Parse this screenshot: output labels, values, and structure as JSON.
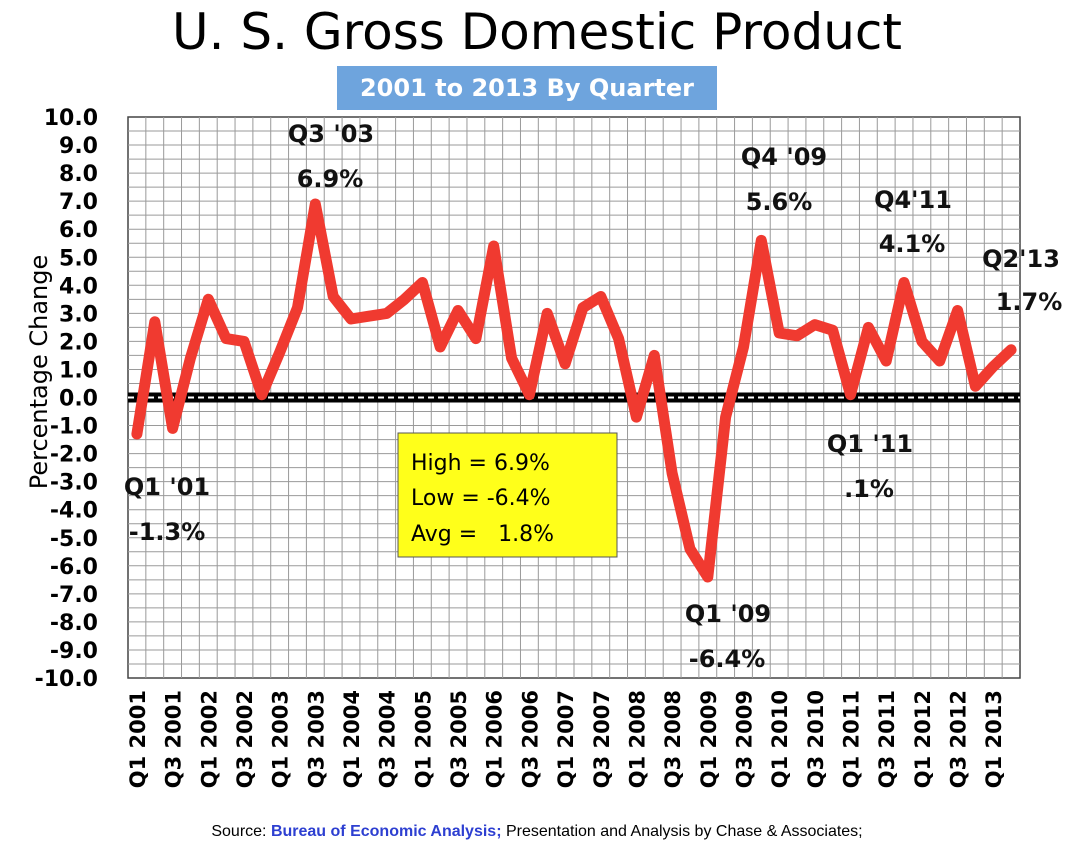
{
  "title": "U. S. Gross Domestic Product",
  "subtitle": "2001 to 2013 By Quarter",
  "source": {
    "prefix": "Source: ",
    "org": "Bureau of Economic Analysis;",
    "suffix": " Presentation and Analysis by Chase & Associates;"
  },
  "stats": {
    "high": "High = 6.9%",
    "low": "Low = -6.4%",
    "avg": "Avg =   1.8%"
  },
  "colors": {
    "line": "#f03a30",
    "stats_box": "#ffff1a",
    "subtitle_box": "#6ea4dd",
    "grid": "#9a9a9a",
    "source_org": "#2d3fd1"
  },
  "chart_data": {
    "type": "line",
    "title": "U. S. Gross Domestic Product",
    "subtitle": "2001 to 2013 By Quarter",
    "xlabel": "",
    "ylabel": "Percentage Change",
    "ylim": [
      -10,
      10
    ],
    "ytick_step": 1,
    "yticks": [
      "10.0",
      "9.0",
      "8.0",
      "7.0",
      "6.0",
      "5.0",
      "4.0",
      "3.0",
      "2.0",
      "1.0",
      "0.0",
      "-1.0",
      "-2.0",
      "-3.0",
      "-4.0",
      "-5.0",
      "-6.0",
      "-7.0",
      "-8.0",
      "-9.0",
      "-10.0"
    ],
    "grid": true,
    "xtick_labels": [
      "Q1 2001",
      "Q3 2001",
      "Q1 2002",
      "Q3 2002",
      "Q1 2003",
      "Q3 2003",
      "Q1 2004",
      "Q3 2004",
      "Q1 2005",
      "Q3 2005",
      "Q1 2006",
      "Q3 2006",
      "Q1 2007",
      "Q3 2007",
      "Q1 2008",
      "Q3 2008",
      "Q1 2009",
      "Q3 2009",
      "Q1 2010",
      "Q3 2010",
      "Q1 2011",
      "Q3 2011",
      "Q1 2012",
      "Q3 2012",
      "Q1 2013"
    ],
    "categories": [
      "Q1 2001",
      "Q2 2001",
      "Q3 2001",
      "Q4 2001",
      "Q1 2002",
      "Q2 2002",
      "Q3 2002",
      "Q4 2002",
      "Q1 2003",
      "Q2 2003",
      "Q3 2003",
      "Q4 2003",
      "Q1 2004",
      "Q2 2004",
      "Q3 2004",
      "Q4 2004",
      "Q1 2005",
      "Q2 2005",
      "Q3 2005",
      "Q4 2005",
      "Q1 2006",
      "Q2 2006",
      "Q3 2006",
      "Q4 2006",
      "Q1 2007",
      "Q2 2007",
      "Q3 2007",
      "Q4 2007",
      "Q1 2008",
      "Q2 2008",
      "Q3 2008",
      "Q4 2008",
      "Q1 2009",
      "Q2 2009",
      "Q3 2009",
      "Q4 2009",
      "Q1 2010",
      "Q2 2010",
      "Q3 2010",
      "Q4 2010",
      "Q1 2011",
      "Q2 2011",
      "Q3 2011",
      "Q4 2011",
      "Q1 2012",
      "Q2 2012",
      "Q3 2012",
      "Q4 2012",
      "Q1 2013",
      "Q2 2013"
    ],
    "series": [
      {
        "name": "GDP % change",
        "values": [
          -1.3,
          2.7,
          -1.1,
          1.4,
          3.5,
          2.1,
          2.0,
          0.1,
          1.6,
          3.2,
          6.9,
          3.6,
          2.8,
          2.9,
          3.0,
          3.5,
          4.1,
          1.8,
          3.1,
          2.1,
          5.4,
          1.4,
          0.1,
          3.0,
          1.2,
          3.2,
          3.6,
          2.1,
          -0.7,
          1.5,
          -2.7,
          -5.4,
          -6.4,
          -0.7,
          1.8,
          5.6,
          2.3,
          2.2,
          2.6,
          2.4,
          0.1,
          2.5,
          1.3,
          4.1,
          2.0,
          1.3,
          3.1,
          0.4,
          1.1,
          1.7
        ]
      }
    ],
    "annotations": [
      {
        "line1": "Q1 '01",
        "line2": "-1.3%"
      },
      {
        "line1": "Q3 '03",
        "line2": "6.9%"
      },
      {
        "line1": "Q4 '09",
        "line2": "5.6%"
      },
      {
        "line1": "Q4'11",
        "line2": "4.1%"
      },
      {
        "line1": "Q2'13",
        "line2": "1.7%"
      },
      {
        "line1": "Q1 '11",
        "line2": ".1%"
      },
      {
        "line1": "Q1 '09",
        "line2": "-6.4%"
      }
    ]
  }
}
